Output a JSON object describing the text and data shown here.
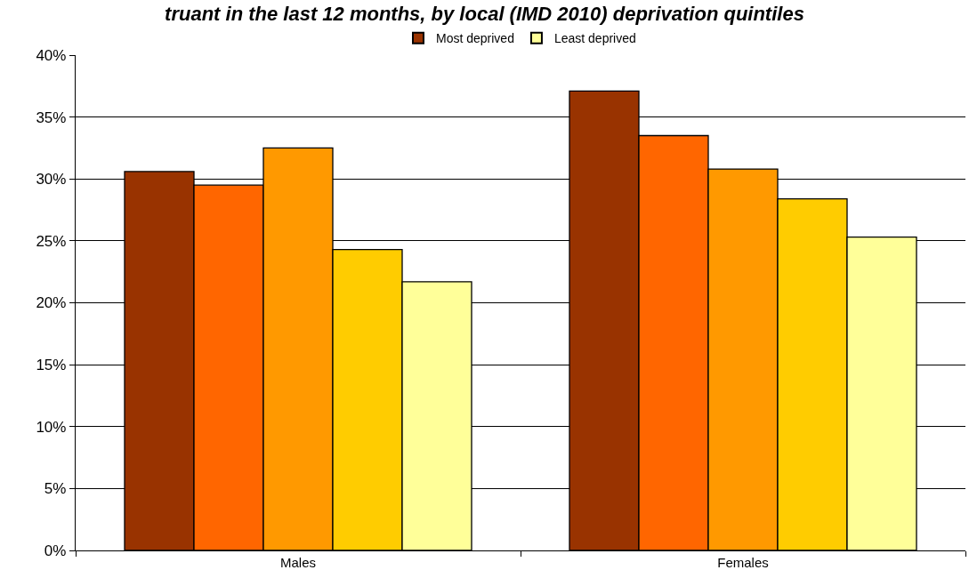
{
  "chart_data": {
    "type": "bar",
    "title": "truant in the last 12 months, by local (IMD 2010) deprivation quintiles",
    "categories": [
      "Males",
      "Females"
    ],
    "series": [
      {
        "name": "Most deprived",
        "color": "#993300",
        "values": [
          30.6,
          37.1
        ]
      },
      {
        "color": "#ff6600",
        "values": [
          29.5,
          33.5
        ]
      },
      {
        "color": "#ff9900",
        "values": [
          32.5,
          30.8
        ]
      },
      {
        "color": "#ffcc00",
        "values": [
          24.3,
          28.4
        ]
      },
      {
        "name": "Least deprived",
        "color": "#ffff99",
        "values": [
          21.7,
          25.3
        ]
      }
    ],
    "ylim": [
      0,
      40
    ],
    "yticks": [
      {
        "value": 0,
        "label": "0%"
      },
      {
        "value": 5,
        "label": "5%"
      },
      {
        "value": 10,
        "label": "10%"
      },
      {
        "value": 15,
        "label": "15%"
      },
      {
        "value": 20,
        "label": "20%"
      },
      {
        "value": 25,
        "label": "25%"
      },
      {
        "value": 30,
        "label": "30%"
      },
      {
        "value": 35,
        "label": "35%"
      },
      {
        "value": 40,
        "label": "40%"
      }
    ],
    "grid": "y",
    "legend": "top"
  }
}
